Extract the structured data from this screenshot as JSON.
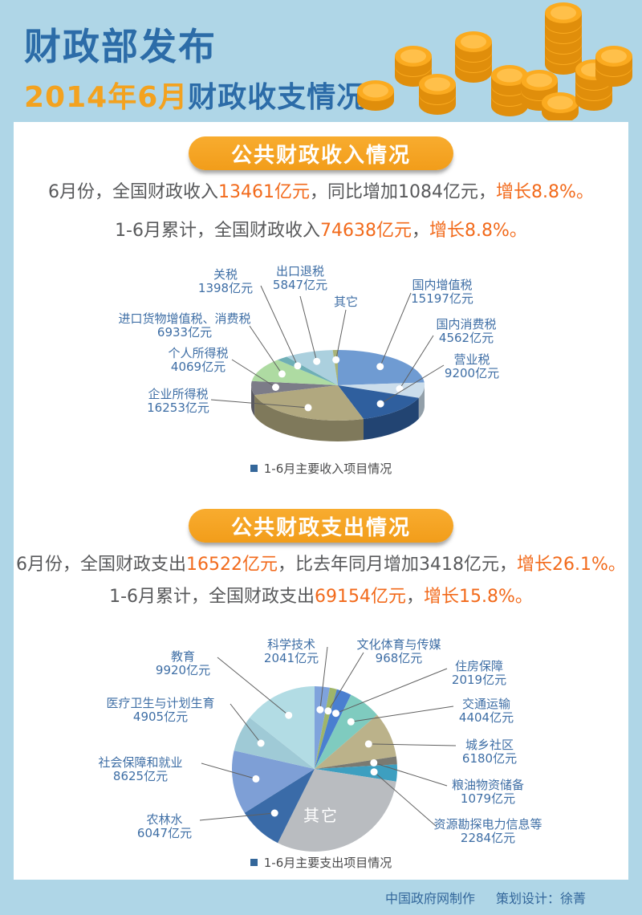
{
  "header": {
    "title": "财政部发布",
    "subtitle_highlight": "2014年6月",
    "subtitle_rest": "财政收支情况"
  },
  "revenue_section": {
    "banner": "公共财政收入情况",
    "line1": [
      {
        "t": "6月份，全国财政收入",
        "hl": false
      },
      {
        "t": "13461亿元",
        "hl": true
      },
      {
        "t": "，同比增加1084亿元，",
        "hl": false
      },
      {
        "t": "增长8.8%。",
        "hl": true
      }
    ],
    "line2": [
      {
        "t": "1-6月累计，全国财政收入",
        "hl": false
      },
      {
        "t": "74638亿元",
        "hl": true
      },
      {
        "t": "，",
        "hl": false
      },
      {
        "t": "增长8.8%。",
        "hl": true
      }
    ],
    "legend": "1-6月主要收入项目情况"
  },
  "expenditure_section": {
    "banner": "公共财政支出情况",
    "line1": [
      {
        "t": "6月份，全国财政支出",
        "hl": false
      },
      {
        "t": "16522亿元",
        "hl": true
      },
      {
        "t": "，比去年同月增加3418亿元，",
        "hl": false
      },
      {
        "t": "增长26.1%。",
        "hl": true
      }
    ],
    "line2": [
      {
        "t": "1-6月累计，全国财政支出",
        "hl": false
      },
      {
        "t": "69154亿元",
        "hl": true
      },
      {
        "t": "，",
        "hl": false
      },
      {
        "t": "增长15.8%。",
        "hl": true
      }
    ],
    "legend": "1-6月主要支出项目情况"
  },
  "footer": {
    "credit": "中国政府网制作",
    "design": "策划设计：徐菁"
  },
  "chart_data": [
    {
      "type": "pie",
      "style": "3d",
      "title": "1-6月主要收入项目情况",
      "unit": "亿元",
      "slices": [
        {
          "label": "国内增值税",
          "value": 15197,
          "value_label": "15197亿元",
          "color": "#6F9BD2"
        },
        {
          "label": "国内消费税",
          "value": 4562,
          "value_label": "4562亿元",
          "color": "#CBDDEB"
        },
        {
          "label": "营业税",
          "value": 9200,
          "value_label": "9200亿元",
          "color": "#2F5F9E"
        },
        {
          "label": "企业所得税",
          "value": 16253,
          "value_label": "16253亿元",
          "color": "#B1A87F"
        },
        {
          "label": "个人所得税",
          "value": 4069,
          "value_label": "4069亿元",
          "color": "#7C7C88"
        },
        {
          "label": "进口货物增值税、消费税",
          "value": 6933,
          "value_label": "6933亿元",
          "color": "#AEDBA2"
        },
        {
          "label": "关税",
          "value": 1398,
          "value_label": "1398亿元",
          "color": "#6FAFB6"
        },
        {
          "label": "出口退税",
          "value": 5847,
          "value_label": "5847亿元",
          "color": "#ABD0DE"
        },
        {
          "label": "其它",
          "value": 600,
          "value_label": "",
          "color": "#A8B377",
          "estimated": true
        }
      ]
    },
    {
      "type": "pie",
      "style": "flat",
      "title": "1-6月主要支出项目情况",
      "unit": "亿元",
      "total": 69154,
      "slices": [
        {
          "label": "科学技术",
          "value": 2041,
          "value_label": "2041亿元",
          "color": "#7FA3DC"
        },
        {
          "label": "文化体育与传媒",
          "value": 968,
          "value_label": "968亿元",
          "color": "#9FB56A"
        },
        {
          "label": "住房保障",
          "value": 2019,
          "value_label": "2019亿元",
          "color": "#4A7FD0"
        },
        {
          "label": "交通运输",
          "value": 4404,
          "value_label": "4404亿元",
          "color": "#7FCBBF"
        },
        {
          "label": "城乡社区",
          "value": 6180,
          "value_label": "6180亿元",
          "color": "#BBB28A"
        },
        {
          "label": "粮油物资储备",
          "value": 1079,
          "value_label": "1079亿元",
          "color": "#7A7A72"
        },
        {
          "label": "资源勘探电力信息等",
          "value": 2284,
          "value_label": "2284亿元",
          "color": "#3D9FC0"
        },
        {
          "label": "其它",
          "value": 20682,
          "value_label": "",
          "color": "#B9BCC0",
          "estimated": true
        },
        {
          "label": "农林水",
          "value": 6047,
          "value_label": "6047亿元",
          "color": "#3A6BA8"
        },
        {
          "label": "社会保障和就业",
          "value": 8625,
          "value_label": "8625亿元",
          "color": "#7E9FD6"
        },
        {
          "label": "医疗卫生与计划生育",
          "value": 4905,
          "value_label": "4905亿元",
          "color": "#9FCAD6"
        },
        {
          "label": "教育",
          "value": 9920,
          "value_label": "9920亿元",
          "color": "#B2DCE4"
        }
      ]
    }
  ],
  "colors": {
    "background": "#AFD6E7",
    "card": "#FFFFFF",
    "title_blue": "#2C6CA8",
    "accent_orange": "#F6A426",
    "highlight": "#F26A1B",
    "text_gray": "#58595B",
    "label_blue": "#3E6EA5",
    "legend_square": "#34679A",
    "footer_blue": "#33679B",
    "coin_gold": "#FBAB20"
  }
}
